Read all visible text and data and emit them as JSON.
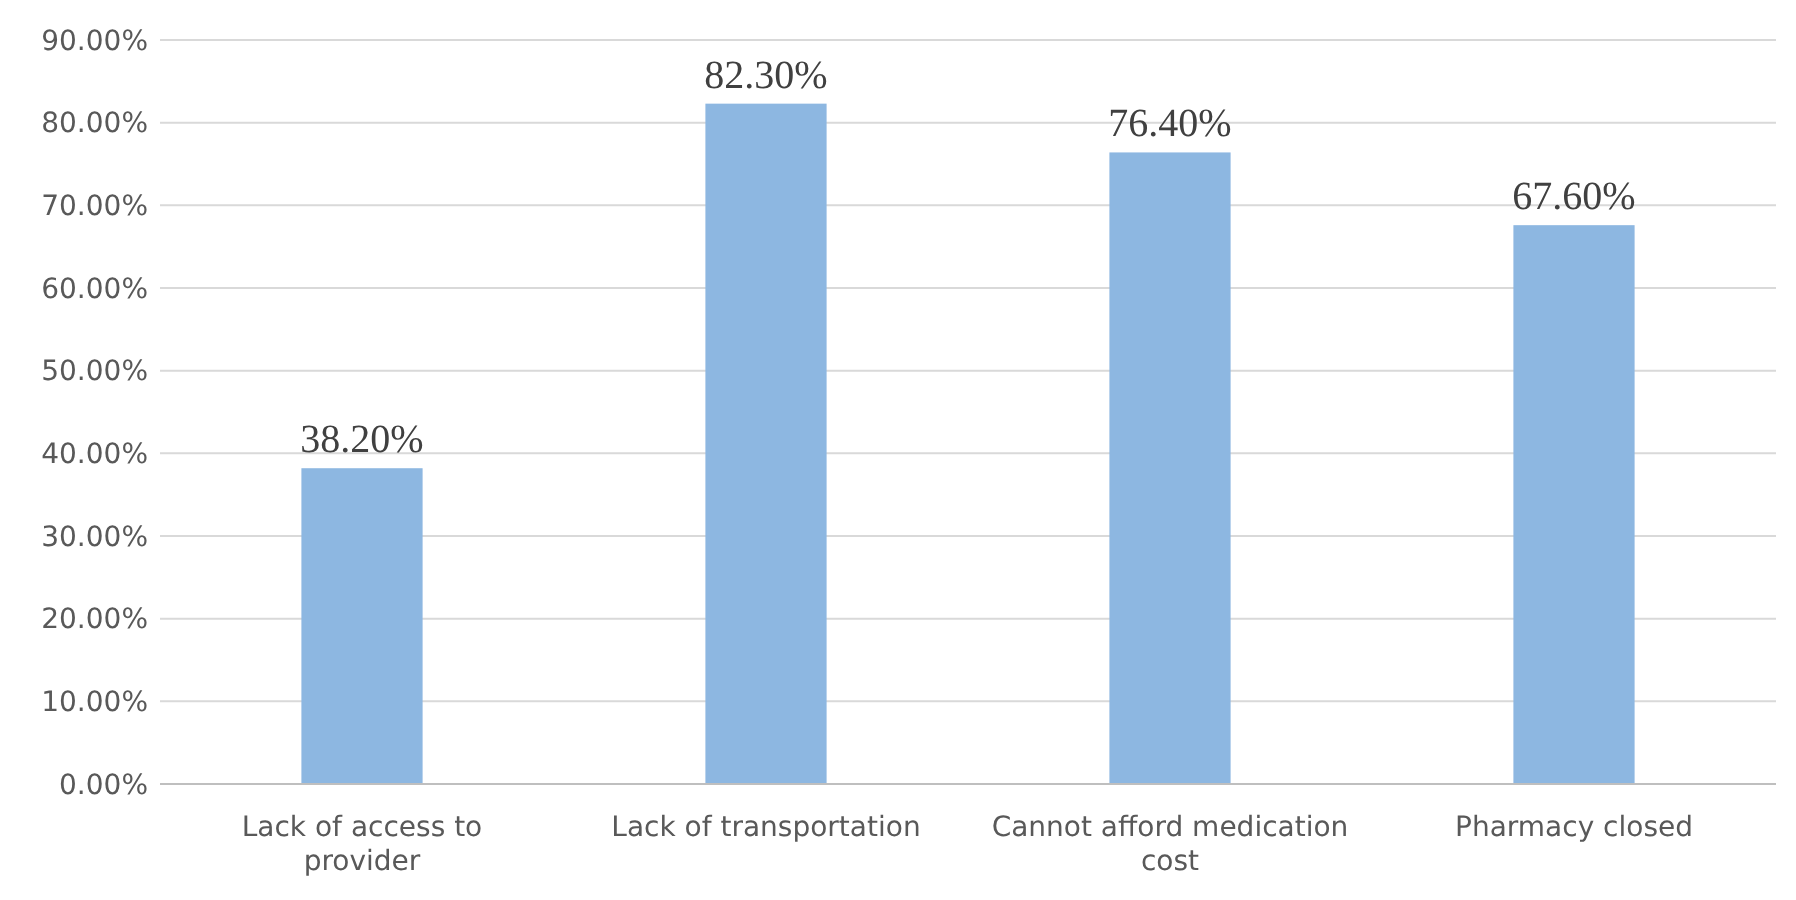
{
  "chart_data": {
    "type": "bar",
    "categories": [
      "Lack of access to provider",
      "Lack of transportation",
      "Cannot afford medication cost",
      "Pharmacy closed"
    ],
    "values": [
      38.2,
      82.3,
      76.4,
      67.6
    ],
    "value_labels": [
      "38.20%",
      "82.30%",
      "76.40%",
      "67.60%"
    ],
    "color": "#8db7e1",
    "ylim": [
      0,
      90
    ],
    "yticks": [
      {
        "value": 0,
        "label": "0.00%"
      },
      {
        "value": 10,
        "label": "10.00%"
      },
      {
        "value": 20,
        "label": "20.00%"
      },
      {
        "value": 30,
        "label": "30.00%"
      },
      {
        "value": 40,
        "label": "40.00%"
      },
      {
        "value": 50,
        "label": "50.00%"
      },
      {
        "value": 60,
        "label": "60.00%"
      },
      {
        "value": 70,
        "label": "70.00%"
      },
      {
        "value": 80,
        "label": "80.00%"
      },
      {
        "value": 90,
        "label": "90.00%"
      }
    ],
    "grid": "y"
  }
}
